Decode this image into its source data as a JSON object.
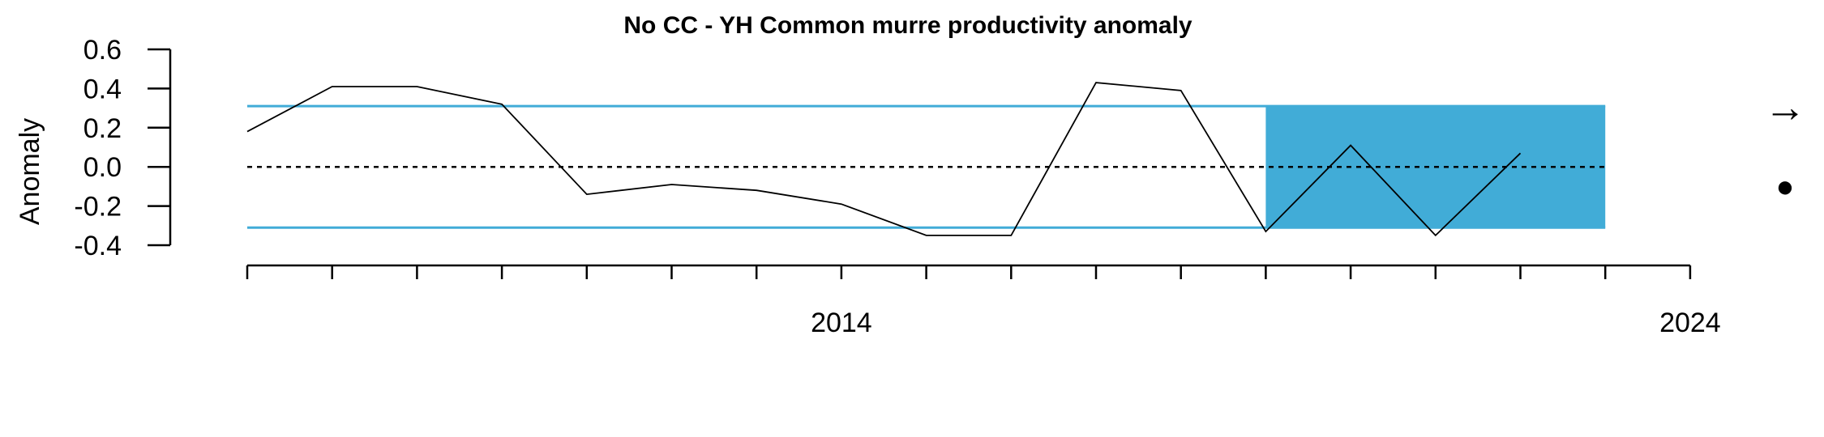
{
  "chart_data": {
    "type": "line",
    "title": "No CC - YH  Common murre productivity anomaly",
    "xlabel": "",
    "ylabel": "Anomaly",
    "x": [
      2007,
      2008,
      2009,
      2010,
      2011,
      2012,
      2013,
      2014,
      2015,
      2016,
      2017,
      2018,
      2019,
      2020,
      2021,
      2022,
      2023
    ],
    "series": [
      {
        "values": [
          0.18,
          0.41,
          0.41,
          0.32,
          -0.14,
          -0.09,
          -0.12,
          -0.19,
          -0.35,
          -0.35,
          0.43,
          0.39,
          -0.33,
          0.11,
          -0.35,
          0.07
        ]
      }
    ],
    "x_values": [
      2007,
      2008,
      2009,
      2010,
      2011,
      2012,
      2013,
      2014,
      2015,
      2016,
      2017,
      2018,
      2019,
      2020,
      2021,
      2022
    ],
    "xlim": [
      2006.9,
      2024
    ],
    "ylim": [
      -0.4,
      0.6
    ],
    "y_ticks": [
      "0.6",
      "0.4",
      "0.2",
      "0.0",
      "-0.2",
      "-0.4"
    ],
    "x_tick_labels": [
      "2014",
      "2024"
    ],
    "reference_lines": {
      "upper": 0.31,
      "lower": -0.31,
      "mean": 0.0
    },
    "highlight_range": {
      "x_start": 2019,
      "x_end": 2023,
      "y_low": -0.31,
      "y_high": 0.31
    },
    "trend_symbol": "→",
    "mean_symbol": "●",
    "colors": {
      "band": "#41acd7",
      "line": "#000000",
      "reference": "#41acd7"
    },
    "grid": false,
    "legend": "none"
  }
}
